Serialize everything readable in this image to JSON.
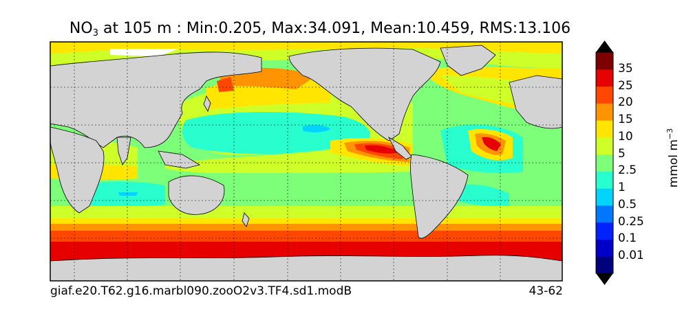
{
  "title": {
    "species": "NO",
    "species_sub": "3",
    "depth_text": " at 105 m : Min:0.205, Max:34.091, Mean:10.459, RMS:13.106"
  },
  "colorbar": {
    "unit_base": "mmol m",
    "unit_exp": "−3",
    "tick_labels": [
      "35",
      "25",
      "20",
      "15",
      "10",
      "5",
      "2.5",
      "1",
      "0.5",
      "0.25",
      "0.1",
      "0.01"
    ],
    "levels": [
      0,
      0.01,
      0.1,
      0.25,
      0.5,
      1,
      2.5,
      5,
      10,
      15,
      20,
      25,
      35
    ],
    "colors": [
      "#00007f",
      "#0000c8",
      "#0022ff",
      "#0077ff",
      "#00d4ff",
      "#29ffce",
      "#7dff7a",
      "#ceff29",
      "#ffe500",
      "#ff9400",
      "#ff4700",
      "#e60000",
      "#7f0000"
    ],
    "under_color": "#000000",
    "over_color": "#000000"
  },
  "footer": {
    "case_name": "giaf.e20.T62.g16.marbl090.zooO2v3.TF4.sd1.modB",
    "years": "43-62"
  },
  "map": {
    "land_color": "#d3d3d3",
    "ice_color": "#ffffff",
    "grid": true,
    "projection": "cylindrical",
    "lon_range": [
      30,
      390
    ],
    "lat_range": [
      -80,
      90
    ]
  }
}
